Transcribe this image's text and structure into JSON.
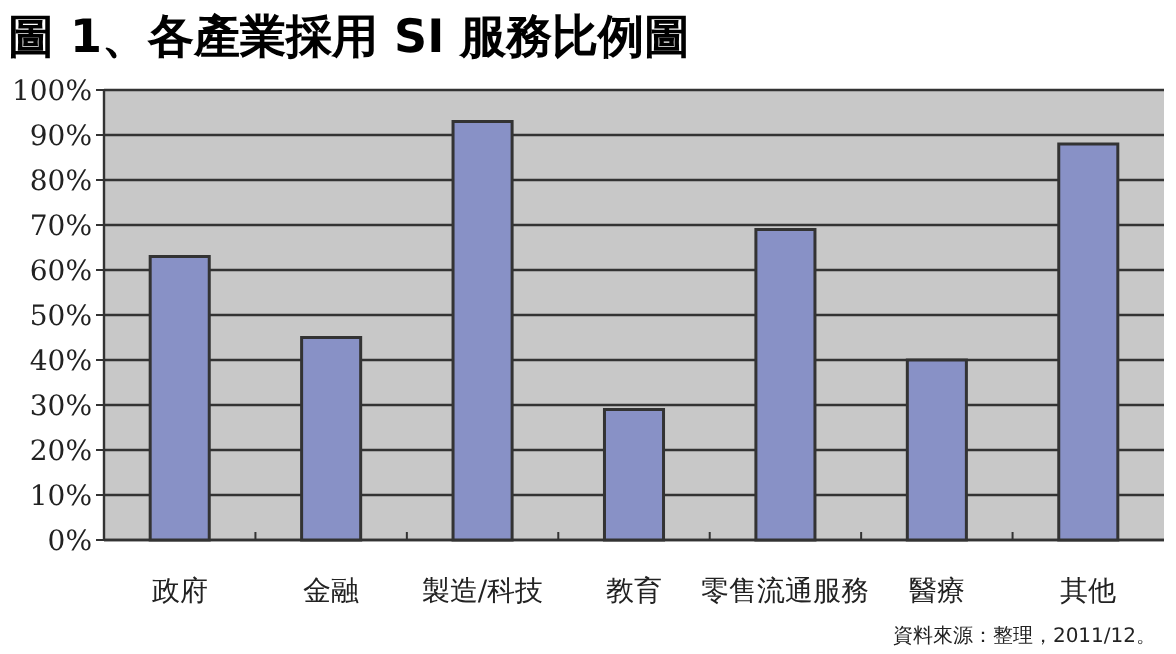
{
  "chart_data": {
    "type": "bar",
    "title": "圖 1、各產業採用 SI 服務比例圖",
    "categories": [
      "政府",
      "金融",
      "製造/科技",
      "教育",
      "零售流通服務",
      "醫療",
      "其他"
    ],
    "values": [
      63,
      45,
      93,
      29,
      69,
      40,
      88
    ],
    "color": "#8891c6",
    "ylim": [
      0,
      100
    ],
    "yticks": [
      {
        "value": 0,
        "label": "0%"
      },
      {
        "value": 10,
        "label": "10%"
      },
      {
        "value": 20,
        "label": "20%"
      },
      {
        "value": 30,
        "label": "30%"
      },
      {
        "value": 40,
        "label": "40%"
      },
      {
        "value": 50,
        "label": "50%"
      },
      {
        "value": 60,
        "label": "60%"
      },
      {
        "value": 70,
        "label": "70%"
      },
      {
        "value": 80,
        "label": "80%"
      },
      {
        "value": 90,
        "label": "90%"
      },
      {
        "value": 100,
        "label": "100%"
      }
    ],
    "grid": "y",
    "annotations": [
      "資料來源：整理，2011/12。"
    ]
  }
}
